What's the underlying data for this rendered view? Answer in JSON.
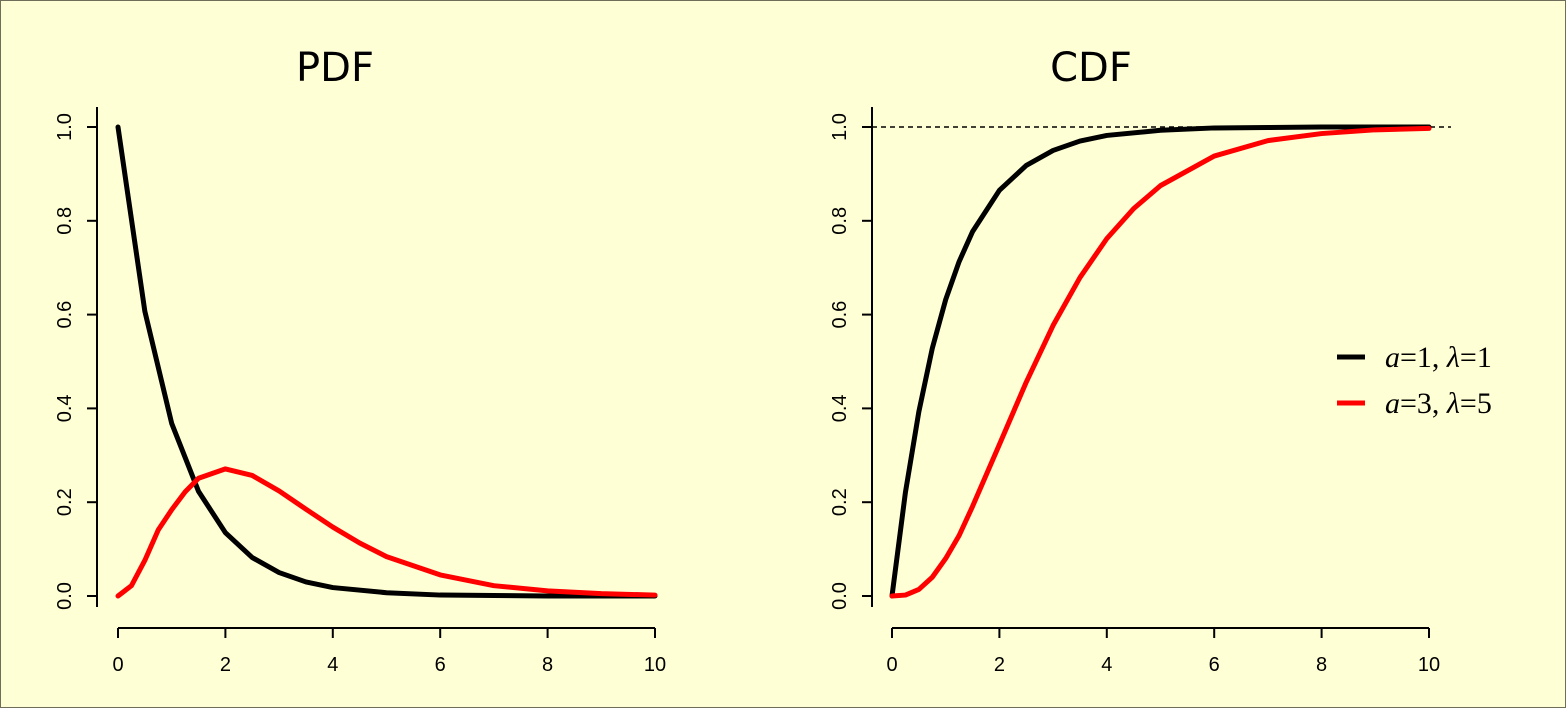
{
  "chart_data": [
    {
      "type": "line",
      "title": "PDF",
      "xlabel": "",
      "ylabel": "",
      "xlim": [
        0,
        10
      ],
      "ylim": [
        0,
        1
      ],
      "x_ticks": [
        "0",
        "2",
        "4",
        "6",
        "8",
        "10"
      ],
      "y_ticks": [
        "0.0",
        "0.2",
        "0.4",
        "0.6",
        "0.8",
        "1.0"
      ],
      "grid": false,
      "series": [
        {
          "color": "#000000",
          "x": [
            0,
            0.5,
            1,
            1.5,
            2,
            2.5,
            3,
            3.5,
            4,
            5,
            6,
            7,
            8,
            9,
            10
          ],
          "y": [
            1.0,
            0.607,
            0.368,
            0.223,
            0.135,
            0.082,
            0.05,
            0.03,
            0.018,
            0.007,
            0.002,
            0.001,
            0.0,
            0.0,
            0.0
          ]
        },
        {
          "color": "#ff0000",
          "x": [
            0,
            0.25,
            0.5,
            0.75,
            1,
            1.25,
            1.5,
            2,
            2.5,
            3,
            3.5,
            4,
            4.5,
            5,
            6,
            7,
            8,
            9,
            10
          ],
          "y": [
            0,
            0.022,
            0.076,
            0.141,
            0.184,
            0.222,
            0.251,
            0.271,
            0.257,
            0.224,
            0.185,
            0.147,
            0.113,
            0.084,
            0.045,
            0.022,
            0.011,
            0.005,
            0.002
          ]
        }
      ]
    },
    {
      "type": "line",
      "title": "CDF",
      "xlabel": "",
      "ylabel": "",
      "xlim": [
        0,
        10
      ],
      "ylim": [
        0,
        1
      ],
      "x_ticks": [
        "0",
        "2",
        "4",
        "6",
        "8",
        "10"
      ],
      "y_ticks": [
        "0.0",
        "0.2",
        "0.4",
        "0.6",
        "0.8",
        "1.0"
      ],
      "grid": false,
      "reference_line_y": 1.0,
      "legend_position": "right",
      "series": [
        {
          "name": "a=1, λ=1",
          "color": "#000000",
          "x": [
            0,
            0.25,
            0.5,
            0.75,
            1,
            1.25,
            1.5,
            2,
            2.5,
            3,
            3.5,
            4,
            5,
            6,
            7,
            8,
            9,
            10
          ],
          "y": [
            0,
            0.221,
            0.393,
            0.528,
            0.632,
            0.713,
            0.777,
            0.865,
            0.918,
            0.95,
            0.97,
            0.982,
            0.993,
            0.998,
            0.999,
            1.0,
            1.0,
            1.0
          ]
        },
        {
          "name": "a=3, λ=5",
          "color": "#ff0000",
          "x": [
            0,
            0.25,
            0.5,
            0.75,
            1,
            1.25,
            1.5,
            2,
            2.5,
            3,
            3.5,
            4,
            4.5,
            5,
            6,
            7,
            8,
            9,
            10
          ],
          "y": [
            0,
            0.002,
            0.014,
            0.04,
            0.08,
            0.129,
            0.191,
            0.323,
            0.456,
            0.577,
            0.679,
            0.762,
            0.826,
            0.875,
            0.938,
            0.971,
            0.986,
            0.994,
            0.997
          ]
        }
      ]
    }
  ],
  "legend": {
    "entries": [
      {
        "var1": "a",
        "eq1": "=1, ",
        "var2": "λ",
        "eq2": "=1"
      },
      {
        "var1": "a",
        "eq1": "=3, ",
        "var2": "λ",
        "eq2": "=5"
      }
    ]
  }
}
